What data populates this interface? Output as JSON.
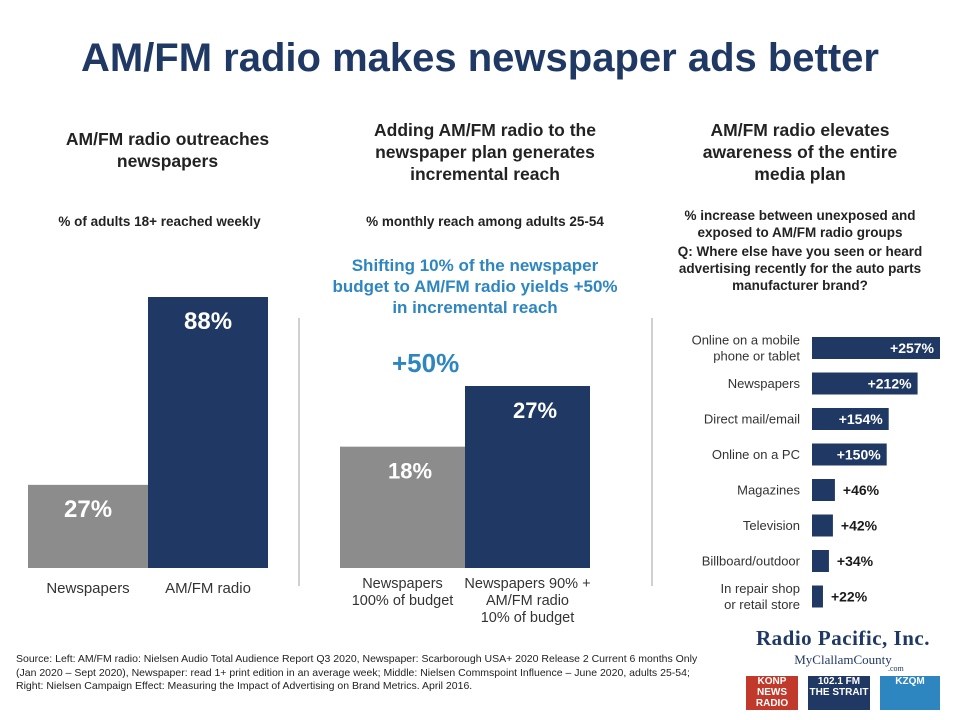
{
  "title": "AM/FM radio makes newspaper ads better",
  "colors": {
    "navy": "#1f3864",
    "gray": "#8c8c8c",
    "accent": "#2e86c1"
  },
  "left": {
    "heading": "AM/FM radio outreaches newspapers",
    "subheading": "% of adults 18+ reached weekly"
  },
  "middle": {
    "heading": "Adding AM/FM radio to the newspaper plan generates incremental reach",
    "subheading": "% monthly reach among adults 25-54",
    "callout": "Shifting 10% of the newspaper budget to AM/FM radio yields +50% in incremental reach",
    "increase_label": "+50%"
  },
  "right": {
    "heading": "AM/FM radio elevates awareness of the entire media plan",
    "subheading": "% increase between unexposed and exposed to AM/FM radio groups",
    "question": "Q: Where else have you seen or heard advertising recently for the auto parts manufacturer brand?"
  },
  "chart_data": [
    {
      "type": "bar",
      "categories": [
        "Newspapers",
        "AM/FM radio"
      ],
      "values": [
        27,
        88
      ],
      "value_labels": [
        "27%",
        "88%"
      ],
      "colors": [
        "#8c8c8c",
        "#1f3864"
      ]
    },
    {
      "type": "bar",
      "categories": [
        "Newspapers 100% of budget",
        "Newspapers 90% + AM/FM radio 10% of budget"
      ],
      "category_lines": [
        [
          "Newspapers",
          "100% of budget"
        ],
        [
          "Newspapers 90% +",
          "AM/FM radio",
          "10% of budget"
        ]
      ],
      "values": [
        18,
        27
      ],
      "value_labels": [
        "18%",
        "27%"
      ],
      "colors": [
        "#8c8c8c",
        "#1f3864"
      ]
    },
    {
      "type": "bar",
      "orientation": "horizontal",
      "categories": [
        "Online on a mobile phone or tablet",
        "Newspapers",
        "Direct mail/email",
        "Online on a PC",
        "Magazines",
        "Television",
        "Billboard/outdoor",
        "In repair shop or retail store"
      ],
      "category_lines": [
        [
          "Online on a mobile",
          "phone or tablet"
        ],
        [
          "Newspapers"
        ],
        [
          "Direct mail/email"
        ],
        [
          "Online on a PC"
        ],
        [
          "Magazines"
        ],
        [
          "Television"
        ],
        [
          "Billboard/outdoor"
        ],
        [
          "In repair shop",
          "or retail store"
        ]
      ],
      "values": [
        257,
        212,
        154,
        150,
        46,
        42,
        34,
        22
      ],
      "value_labels": [
        "+257%",
        "+212%",
        "+154%",
        "+150%",
        "+46%",
        "+42%",
        "+34%",
        "+22%"
      ],
      "color": "#1f3864"
    }
  ],
  "source": "Source: Left: AM/FM radio: Nielsen Audio Total Audience Report Q3 2020, Newspaper: Scarborough USA+ 2020 Release 2 Current 6 months Only (Jan 2020 – Sept 2020), Newspaper: read 1+ print edition in an average week; Middle: Nielsen Commspoint Influence – June 2020, adults 25-54; Right: Nielsen Campaign Effect: Measuring the Impact of Advertising on Brand Metrics. April 2016.",
  "logo": {
    "name": "Radio Pacific, Inc.",
    "site": "MyClallamCounty",
    "site_suffix": ".com",
    "stations": [
      "KONP NEWS RADIO",
      "102.1 FM THE STRAIT",
      "KZQM"
    ]
  }
}
